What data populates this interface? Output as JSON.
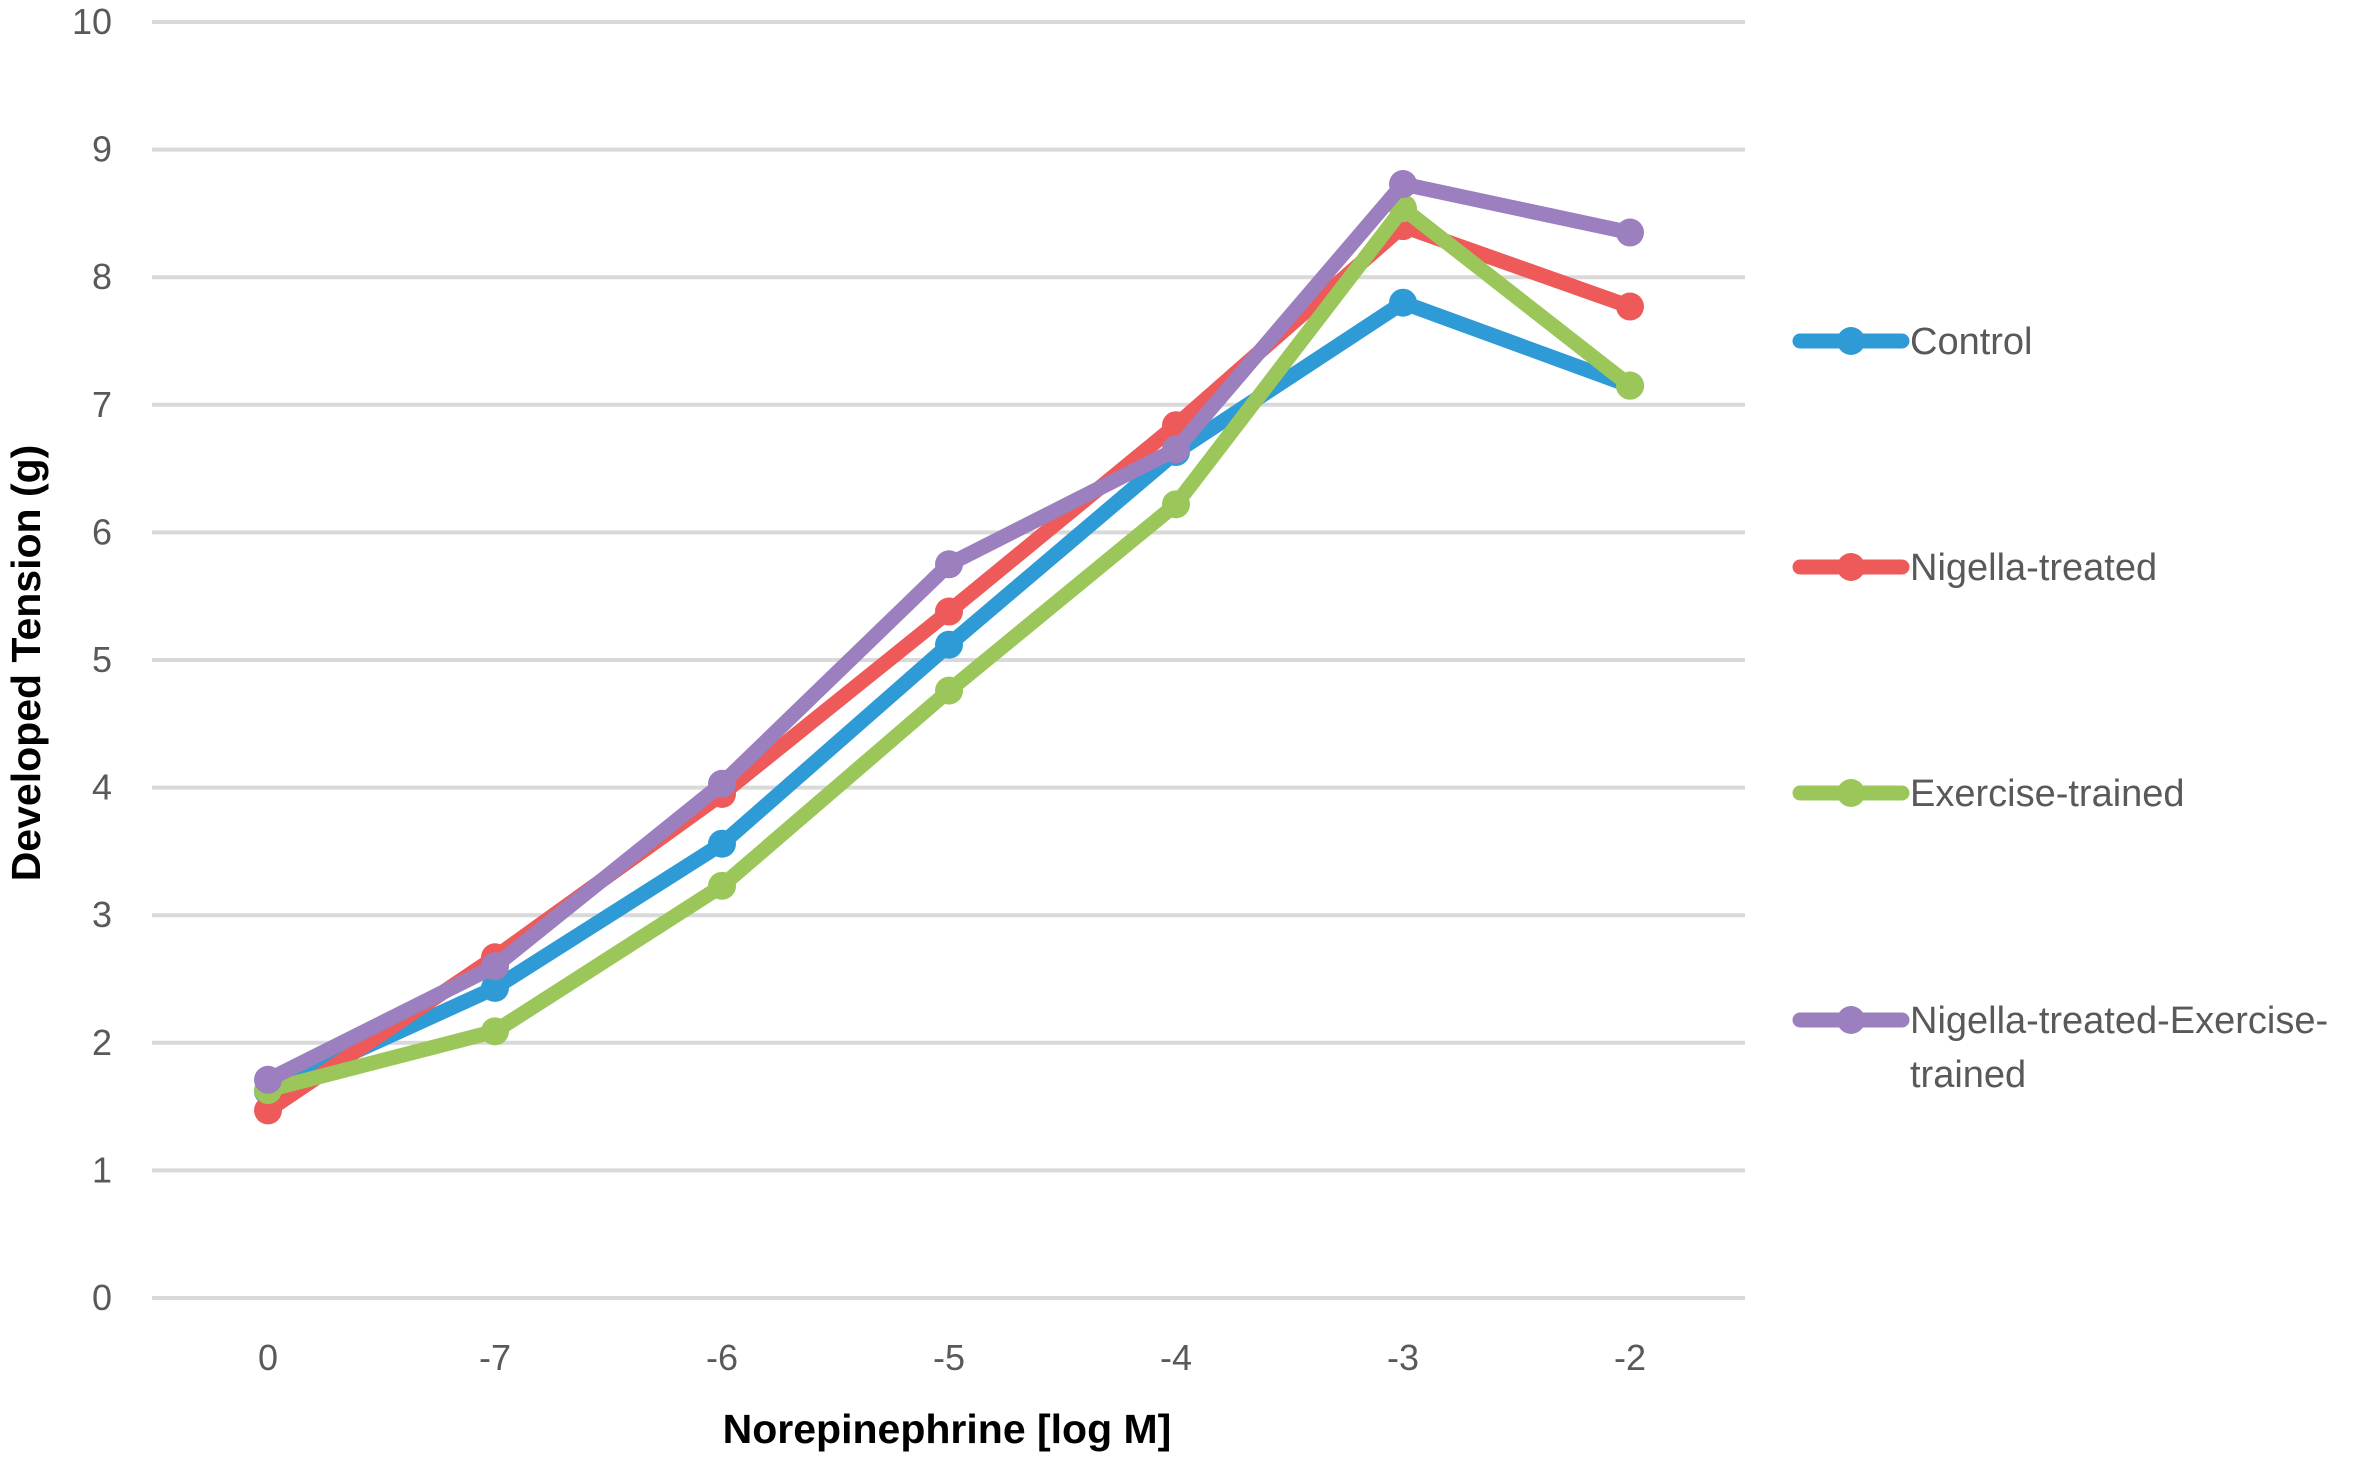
{
  "chart_data": {
    "type": "line",
    "xlabel": "Norepinephrine [log M]",
    "ylabel": "Developed Tension (g)",
    "categories": [
      "0",
      "-7",
      "-6",
      "-5",
      "-4",
      "-3",
      "-2"
    ],
    "ylim": [
      0,
      10
    ],
    "yticks": [
      "0",
      "1",
      "2",
      "3",
      "4",
      "5",
      "6",
      "7",
      "8",
      "9",
      "10"
    ],
    "grid": true,
    "legend_position": "right",
    "series": [
      {
        "name": "Control",
        "color": "#2E9BD6",
        "values": [
          1.62,
          2.43,
          3.56,
          5.12,
          6.63,
          7.8,
          7.15
        ]
      },
      {
        "name": "Nigella-treated",
        "color": "#EE5A5A",
        "values": [
          1.47,
          2.67,
          3.95,
          5.38,
          6.84,
          8.4,
          7.77
        ]
      },
      {
        "name": "Exercise-trained",
        "color": "#9BC75A",
        "values": [
          1.63,
          2.09,
          3.23,
          4.76,
          6.22,
          8.54,
          7.15
        ]
      },
      {
        "name": "Nigella-treated-Exercise-trained",
        "name_lines": [
          "Nigella-treated-Exercise-",
          "trained"
        ],
        "color": "#9B7FBE",
        "values": [
          1.71,
          2.6,
          4.03,
          5.75,
          6.65,
          8.73,
          8.35
        ]
      }
    ]
  }
}
